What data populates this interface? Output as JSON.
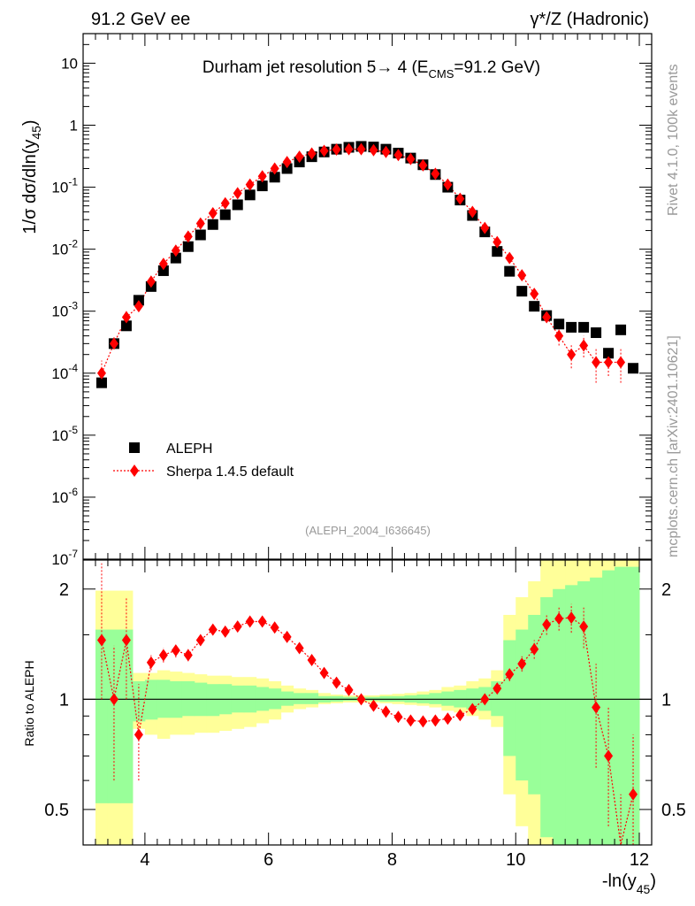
{
  "header": {
    "left": "91.2 GeV ee",
    "right_prefix": "γ*/Z (Hadronic)"
  },
  "side_notes": {
    "rivet": "Rivet 4.1.0,  100k events",
    "mcplots": "mcplots.cern.ch [arXiv:2401.10621]"
  },
  "colors": {
    "data": "#000000",
    "mc": "#ff0000",
    "band_inner": "#99ff99",
    "band_outer": "#ffff99",
    "watermark": "#999999"
  },
  "chart_data": [
    {
      "type": "scatter",
      "title_main": "Durham jet resolution 5",
      "title_arrow": "→",
      "title_tail": " 4 (E",
      "title_sub": "CMS",
      "title_end": "=91.2 GeV)",
      "ylabel_main": "1/σ  dσ/dln(y",
      "ylabel_sub": "45",
      "ylabel_end": ")",
      "yscale": "log",
      "ylim": [
        1e-07,
        30
      ],
      "xlim": [
        3.0,
        12.2
      ],
      "y_tick_labels": [
        "10^-7",
        "10^-6",
        "10^-5",
        "10^-4",
        "10^-3",
        "10^-2",
        "10^-1",
        "1",
        "10"
      ],
      "legend_position": "lower-left",
      "watermark": "(ALEPH_2004_I636645)",
      "x": [
        3.3,
        3.5,
        3.7,
        3.9,
        4.1,
        4.3,
        4.5,
        4.7,
        4.9,
        5.1,
        5.3,
        5.5,
        5.7,
        5.9,
        6.1,
        6.3,
        6.5,
        6.7,
        6.9,
        7.1,
        7.3,
        7.5,
        7.7,
        7.9,
        8.1,
        8.3,
        8.5,
        8.7,
        8.9,
        9.1,
        9.3,
        9.5,
        9.7,
        9.9,
        10.1,
        10.3,
        10.5,
        10.7,
        10.9,
        11.1,
        11.3,
        11.5,
        11.7,
        11.9
      ],
      "series": [
        {
          "name": "ALEPH",
          "marker": "square",
          "values": [
            7e-05,
            0.0003,
            0.00058,
            0.0015,
            0.0025,
            0.0045,
            0.0072,
            0.011,
            0.017,
            0.025,
            0.036,
            0.052,
            0.075,
            0.105,
            0.145,
            0.2,
            0.255,
            0.31,
            0.37,
            0.41,
            0.44,
            0.455,
            0.445,
            0.41,
            0.355,
            0.295,
            0.23,
            0.16,
            0.1,
            0.062,
            0.035,
            0.019,
            0.0092,
            0.0044,
            0.0021,
            0.0012,
            0.00085,
            0.00062,
            0.00055,
            0.00055,
            0.00045,
            0.00021,
            0.0005,
            0.00012
          ]
        },
        {
          "name": "Sherpa 1.4.5 default",
          "marker": "diamond",
          "linestyle": "dotted",
          "values": [
            0.0001,
            0.0003,
            0.0008,
            0.0012,
            0.003,
            0.0058,
            0.0095,
            0.016,
            0.026,
            0.038,
            0.055,
            0.08,
            0.11,
            0.15,
            0.2,
            0.255,
            0.31,
            0.35,
            0.385,
            0.405,
            0.41,
            0.41,
            0.395,
            0.37,
            0.33,
            0.285,
            0.225,
            0.165,
            0.11,
            0.065,
            0.04,
            0.022,
            0.013,
            0.0072,
            0.0038,
            0.0019,
            0.0008,
            0.0004,
            0.0002,
            0.00028,
            0.00015,
            0.00015,
            0.00015,
            null
          ],
          "err_low": [
            3e-05,
            5e-05,
            0.00015,
            0.0002,
            0.0004,
            0.0006,
            0.0008,
            0.001,
            0.0015,
            0.002,
            0.003,
            0.004,
            0.005,
            0.006,
            0.008,
            0.01,
            0.01,
            0.012,
            0.012,
            0.013,
            0.013,
            0.013,
            0.013,
            0.012,
            0.011,
            0.01,
            0.009,
            0.007,
            0.005,
            0.003,
            0.002,
            0.0012,
            0.0008,
            0.0005,
            0.0003,
            0.0002,
            0.00012,
            0.00012,
            8e-05,
            0.0001,
            8e-05,
            6e-05,
            8e-05,
            null
          ],
          "err_high": [
            6e-05,
            8e-05,
            0.0002,
            0.0002,
            0.0004,
            0.0006,
            0.0008,
            0.001,
            0.0015,
            0.002,
            0.003,
            0.004,
            0.005,
            0.006,
            0.008,
            0.01,
            0.01,
            0.012,
            0.012,
            0.013,
            0.013,
            0.013,
            0.013,
            0.012,
            0.011,
            0.01,
            0.009,
            0.007,
            0.005,
            0.003,
            0.002,
            0.0012,
            0.0008,
            0.0005,
            0.0003,
            0.0002,
            0.00012,
            0.00015,
            0.0001,
            0.00012,
            0.0001,
            8e-05,
            0.0001,
            null
          ]
        }
      ]
    },
    {
      "type": "ratio",
      "ylabel": "Ratio to ALEPH",
      "xlabel_main": "-ln(y",
      "xlabel_sub": "45",
      "xlabel_end": ")",
      "yscale": "log",
      "ylim": [
        0.4,
        2.4
      ],
      "xlim": [
        3.0,
        12.2
      ],
      "x_tick_labels": [
        "4",
        "6",
        "8",
        "10",
        "12"
      ],
      "y_tick_labels": [
        "0.5",
        "1",
        "2"
      ],
      "bin_edges": [
        3.2,
        3.4,
        3.6,
        3.8,
        4.0,
        4.2,
        4.4,
        4.6,
        4.8,
        5.0,
        5.2,
        5.4,
        5.6,
        5.8,
        6.0,
        6.2,
        6.4,
        6.6,
        6.8,
        7.0,
        7.2,
        7.4,
        7.6,
        7.8,
        8.0,
        8.2,
        8.4,
        8.6,
        8.8,
        9.0,
        9.2,
        9.4,
        9.6,
        9.8,
        10.0,
        10.2,
        10.4,
        10.6,
        10.8,
        11.0,
        11.2,
        11.4,
        11.6,
        11.8,
        12.0
      ],
      "band_inner": [
        [
          0.52,
          1.55
        ],
        [
          0.52,
          1.55
        ],
        [
          0.52,
          1.55
        ],
        [
          0.87,
          1.12
        ],
        [
          0.88,
          1.13
        ],
        [
          0.89,
          1.13
        ],
        [
          0.89,
          1.12
        ],
        [
          0.9,
          1.12
        ],
        [
          0.9,
          1.11
        ],
        [
          0.9,
          1.1
        ],
        [
          0.91,
          1.1
        ],
        [
          0.92,
          1.09
        ],
        [
          0.92,
          1.09
        ],
        [
          0.93,
          1.08
        ],
        [
          0.94,
          1.07
        ],
        [
          0.96,
          1.05
        ],
        [
          0.97,
          1.04
        ],
        [
          0.97,
          1.04
        ],
        [
          0.98,
          1.02
        ],
        [
          0.985,
          1.02
        ],
        [
          0.99,
          1.015
        ],
        [
          0.99,
          1.015
        ],
        [
          0.99,
          1.015
        ],
        [
          0.985,
          1.02
        ],
        [
          0.985,
          1.02
        ],
        [
          0.98,
          1.025
        ],
        [
          0.975,
          1.03
        ],
        [
          0.97,
          1.04
        ],
        [
          0.96,
          1.05
        ],
        [
          0.95,
          1.06
        ],
        [
          0.94,
          1.07
        ],
        [
          0.93,
          1.08
        ],
        [
          0.9,
          1.12
        ],
        [
          0.7,
          1.45
        ],
        [
          0.6,
          1.55
        ],
        [
          0.55,
          1.7
        ],
        [
          0.42,
          1.9
        ],
        [
          0.4,
          2.0
        ],
        [
          0.4,
          2.05
        ],
        [
          0.4,
          2.1
        ],
        [
          0.4,
          2.15
        ],
        [
          0.4,
          2.25
        ],
        [
          0.4,
          2.3
        ],
        [
          0.4,
          2.3
        ]
      ],
      "band_outer": [
        [
          0.4,
          1.98
        ],
        [
          0.4,
          1.98
        ],
        [
          0.4,
          1.98
        ],
        [
          0.83,
          1.18
        ],
        [
          0.8,
          1.18
        ],
        [
          0.78,
          1.2
        ],
        [
          0.8,
          1.19
        ],
        [
          0.8,
          1.18
        ],
        [
          0.81,
          1.17
        ],
        [
          0.81,
          1.16
        ],
        [
          0.82,
          1.16
        ],
        [
          0.83,
          1.15
        ],
        [
          0.84,
          1.15
        ],
        [
          0.86,
          1.14
        ],
        [
          0.88,
          1.12
        ],
        [
          0.92,
          1.09
        ],
        [
          0.94,
          1.07
        ],
        [
          0.95,
          1.06
        ],
        [
          0.97,
          1.04
        ],
        [
          0.975,
          1.03
        ],
        [
          0.98,
          1.025
        ],
        [
          0.98,
          1.025
        ],
        [
          0.98,
          1.025
        ],
        [
          0.975,
          1.03
        ],
        [
          0.97,
          1.035
        ],
        [
          0.965,
          1.04
        ],
        [
          0.96,
          1.05
        ],
        [
          0.95,
          1.06
        ],
        [
          0.93,
          1.08
        ],
        [
          0.92,
          1.09
        ],
        [
          0.9,
          1.12
        ],
        [
          0.88,
          1.14
        ],
        [
          0.84,
          1.2
        ],
        [
          0.55,
          1.7
        ],
        [
          0.45,
          1.9
        ],
        [
          0.4,
          2.1
        ],
        [
          0.4,
          2.4
        ],
        [
          0.4,
          2.4
        ],
        [
          0.4,
          2.4
        ],
        [
          0.4,
          2.4
        ],
        [
          0.4,
          2.4
        ],
        [
          0.4,
          2.4
        ],
        [
          0.4,
          2.4
        ],
        [
          0.4,
          2.4
        ]
      ],
      "ratio": [
        1.45,
        1.0,
        1.45,
        0.8,
        1.26,
        1.32,
        1.36,
        1.32,
        1.45,
        1.55,
        1.53,
        1.58,
        1.63,
        1.63,
        1.57,
        1.48,
        1.38,
        1.28,
        1.18,
        1.11,
        1.06,
        1.0,
        0.96,
        0.925,
        0.895,
        0.875,
        0.87,
        0.875,
        0.885,
        0.905,
        0.94,
        1.0,
        1.07,
        1.17,
        1.25,
        1.37,
        1.6,
        1.66,
        1.67,
        1.58,
        0.95,
        0.7,
        0.35,
        0.55
      ],
      "ratio_err_low": [
        0.45,
        0.4,
        0.45,
        0.2,
        0.06,
        0.06,
        0.06,
        0.05,
        0.05,
        0.05,
        0.04,
        0.04,
        0.04,
        0.04,
        0.04,
        0.03,
        0.03,
        0.03,
        0.02,
        0.02,
        0.02,
        0.02,
        0.02,
        0.02,
        0.02,
        0.02,
        0.02,
        0.02,
        0.02,
        0.02,
        0.02,
        0.03,
        0.03,
        0.05,
        0.06,
        0.08,
        0.1,
        0.12,
        0.15,
        0.2,
        0.3,
        0.25,
        0.2,
        0.2
      ],
      "ratio_err_high": [
        0.9,
        0.4,
        0.45,
        0.3,
        0.06,
        0.06,
        0.06,
        0.05,
        0.05,
        0.05,
        0.04,
        0.04,
        0.04,
        0.04,
        0.04,
        0.03,
        0.03,
        0.03,
        0.02,
        0.02,
        0.02,
        0.02,
        0.02,
        0.02,
        0.02,
        0.02,
        0.02,
        0.02,
        0.02,
        0.02,
        0.02,
        0.03,
        0.03,
        0.05,
        0.06,
        0.08,
        0.1,
        0.12,
        0.15,
        0.2,
        0.3,
        0.25,
        0.2,
        0.25
      ]
    }
  ]
}
